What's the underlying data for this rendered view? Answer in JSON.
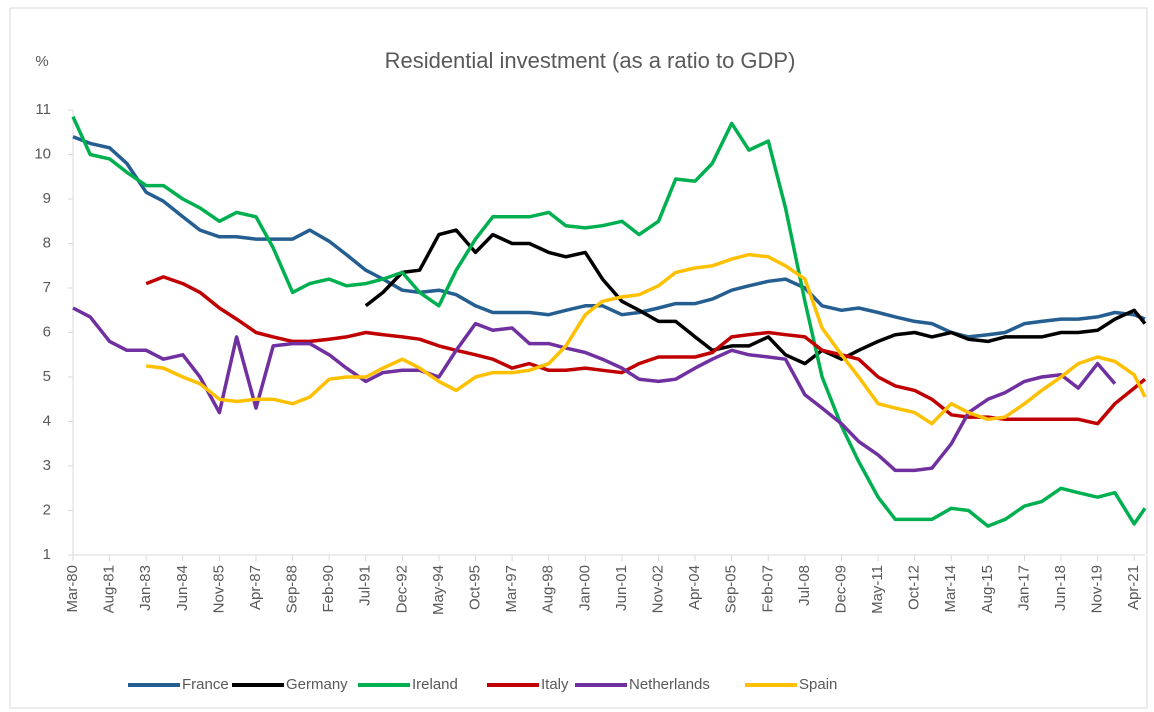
{
  "chart_data": {
    "type": "line",
    "title": "Residential investment (as a ratio to GDP)",
    "y_label": "%",
    "x": [
      "Mar-80",
      "Nov-80",
      "Aug-81",
      "Apr-82",
      "Jan-83",
      "Sep-83",
      "Jun-84",
      "Feb-85",
      "Nov-85",
      "Jul-86",
      "Apr-87",
      "Dec-87",
      "Sep-88",
      "May-89",
      "Feb-90",
      "Oct-90",
      "Jul-91",
      "Mar-92",
      "Dec-92",
      "Aug-93",
      "May-94",
      "Jan-95",
      "Oct-95",
      "Jun-96",
      "Mar-97",
      "Nov-97",
      "Aug-98",
      "Apr-99",
      "Jan-00",
      "Sep-00",
      "Jun-01",
      "Feb-02",
      "Nov-02",
      "Jul-03",
      "Apr-04",
      "Dec-04",
      "Sep-05",
      "May-06",
      "Feb-07",
      "Oct-07",
      "Jul-08",
      "Mar-09",
      "Dec-09",
      "Aug-10",
      "May-11",
      "Jan-12",
      "Oct-12",
      "Jun-13",
      "Mar-14",
      "Nov-14",
      "Aug-15",
      "Apr-16",
      "Jan-17",
      "Sep-17",
      "Jun-18",
      "Feb-19",
      "Nov-19",
      "Jul-20",
      "Apr-21",
      "Sep-21"
    ],
    "xlim": [
      "Mar-80",
      "Sep-21"
    ],
    "xticks": [
      "Mar-80",
      "Aug-81",
      "Jan-83",
      "Jun-84",
      "Nov-85",
      "Apr-87",
      "Sep-88",
      "Feb-90",
      "Jul-91",
      "Dec-92",
      "May-94",
      "Oct-95",
      "Mar-97",
      "Aug-98",
      "Jan-00",
      "Jun-01",
      "Nov-02",
      "Apr-04",
      "Sep-05",
      "Feb-07",
      "Jul-08",
      "Dec-09",
      "May-11",
      "Oct-12",
      "Mar-14",
      "Aug-15",
      "Jan-17",
      "Jun-18",
      "Nov-19",
      "Apr-21"
    ],
    "ylim": [
      1,
      11
    ],
    "yticks": [
      1,
      2,
      3,
      4,
      5,
      6,
      7,
      8,
      9,
      10,
      11
    ],
    "grid": false,
    "legend": "bottom",
    "series": [
      {
        "name": "France",
        "color": "#255e91",
        "values": [
          10.4,
          10.25,
          10.15,
          9.8,
          9.15,
          8.95,
          8.6,
          8.3,
          8.15,
          8.15,
          8.1,
          8.1,
          8.1,
          8.3,
          8.05,
          7.75,
          7.4,
          7.2,
          6.95,
          6.9,
          6.95,
          6.85,
          6.6,
          6.45,
          6.45,
          6.45,
          6.4,
          6.5,
          6.6,
          6.6,
          6.4,
          6.45,
          6.55,
          6.65,
          6.65,
          6.75,
          6.95,
          7.05,
          7.15,
          7.2,
          7.0,
          6.6,
          6.5,
          6.55,
          6.45,
          6.35,
          6.25,
          6.2,
          6.0,
          5.9,
          5.95,
          6.0,
          6.2,
          6.25,
          6.3,
          6.3,
          6.35,
          6.45,
          6.4,
          6.3
        ]
      },
      {
        "name": "Germany",
        "color": "#000000",
        "values": [
          null,
          null,
          null,
          null,
          null,
          null,
          null,
          null,
          null,
          null,
          null,
          null,
          null,
          null,
          null,
          null,
          6.6,
          6.9,
          7.35,
          7.4,
          8.2,
          8.3,
          7.8,
          8.2,
          8.0,
          8.0,
          7.8,
          7.7,
          7.8,
          7.2,
          6.7,
          6.5,
          6.25,
          6.25,
          5.9,
          5.6,
          5.7,
          5.7,
          5.9,
          5.5,
          5.3,
          5.6,
          5.4,
          5.6,
          5.8,
          5.95,
          6.0,
          5.9,
          6.0,
          5.85,
          5.8,
          5.9,
          5.9,
          5.9,
          6.0,
          6.0,
          6.05,
          6.3,
          6.5,
          6.2
        ]
      },
      {
        "name": "Ireland",
        "color": "#00b050",
        "values": [
          10.85,
          10.0,
          9.9,
          9.6,
          9.3,
          9.3,
          9.0,
          8.8,
          8.5,
          8.7,
          8.6,
          7.9,
          6.9,
          7.1,
          7.2,
          7.05,
          7.1,
          7.2,
          7.35,
          6.9,
          6.6,
          7.4,
          8.1,
          8.6,
          8.6,
          8.6,
          8.7,
          8.4,
          8.35,
          8.4,
          8.5,
          8.2,
          8.5,
          9.45,
          9.4,
          9.8,
          10.7,
          10.1,
          10.3,
          8.8,
          6.7,
          5.0,
          3.9,
          3.1,
          2.3,
          1.8,
          1.8,
          1.8,
          2.05,
          2.0,
          1.65,
          1.8,
          2.1,
          2.2,
          2.5,
          2.4,
          2.3,
          2.4,
          1.7,
          2.05
        ]
      },
      {
        "name": "Italy",
        "color": "#c00000",
        "values": [
          null,
          null,
          null,
          null,
          7.1,
          7.25,
          7.1,
          6.9,
          6.55,
          6.3,
          6.0,
          5.9,
          5.8,
          5.8,
          5.85,
          5.9,
          6.0,
          5.95,
          5.9,
          5.85,
          5.7,
          5.6,
          5.5,
          5.4,
          5.2,
          5.3,
          5.15,
          5.15,
          5.2,
          5.15,
          5.1,
          5.3,
          5.45,
          5.45,
          5.45,
          5.55,
          5.9,
          5.95,
          6.0,
          5.95,
          5.9,
          5.6,
          5.5,
          5.4,
          5.0,
          4.8,
          4.7,
          4.5,
          4.15,
          4.1,
          4.1,
          4.05,
          4.05,
          4.05,
          4.05,
          4.05,
          3.95,
          4.4,
          4.75,
          4.95
        ]
      },
      {
        "name": "Netherlands",
        "color": "#7030a0",
        "values": [
          6.55,
          6.35,
          5.8,
          5.6,
          5.6,
          5.4,
          5.5,
          5.0,
          4.2,
          5.9,
          4.3,
          5.7,
          5.75,
          5.75,
          5.5,
          5.2,
          4.9,
          5.1,
          5.15,
          5.15,
          5.0,
          5.6,
          6.2,
          6.05,
          6.1,
          5.75,
          5.75,
          5.65,
          5.55,
          5.4,
          5.2,
          4.95,
          4.9,
          4.95,
          5.2,
          5.4,
          5.6,
          5.5,
          5.45,
          5.4,
          4.6,
          4.3,
          3.95,
          3.55,
          3.25,
          2.9,
          2.9,
          2.95,
          3.5,
          4.2,
          4.5,
          4.65,
          4.9,
          5.0,
          5.05,
          4.75,
          5.3,
          4.85,
          null,
          null
        ]
      },
      {
        "name": "Spain",
        "color": "#ffc000",
        "values": [
          null,
          null,
          null,
          null,
          5.25,
          5.2,
          5.0,
          4.85,
          4.5,
          4.45,
          4.5,
          4.5,
          4.4,
          4.55,
          4.95,
          5.0,
          5.0,
          5.2,
          5.4,
          5.2,
          4.9,
          4.7,
          5.0,
          5.1,
          5.1,
          5.15,
          5.3,
          5.7,
          6.4,
          6.7,
          6.8,
          6.85,
          7.05,
          7.35,
          7.45,
          7.5,
          7.65,
          7.75,
          7.7,
          7.5,
          7.2,
          6.1,
          5.5,
          5.0,
          4.4,
          4.3,
          4.2,
          3.95,
          4.4,
          4.2,
          4.05,
          4.1,
          4.4,
          4.7,
          5.0,
          5.3,
          5.45,
          5.35,
          5.05,
          4.55
        ]
      }
    ]
  }
}
